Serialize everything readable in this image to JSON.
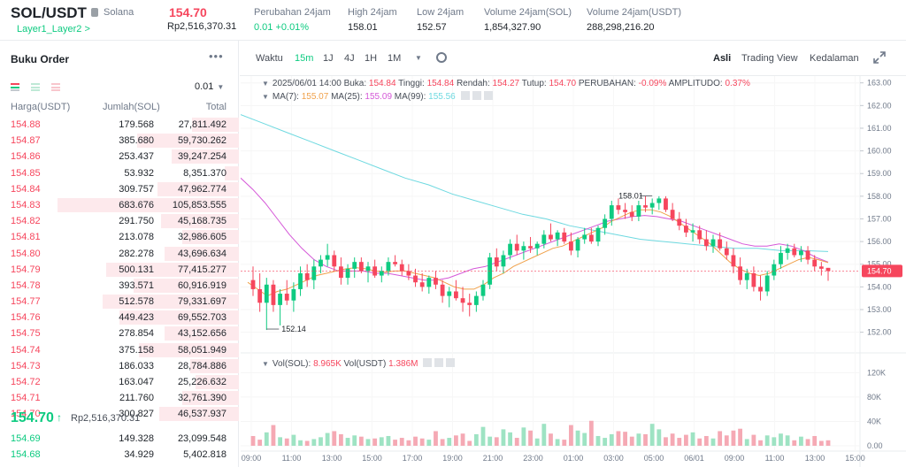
{
  "header": {
    "pair": "SOL/USDT",
    "coin_name": "Solana",
    "tag_link": "Layer1_Layer2 >",
    "price": "154.70",
    "price_idr": "Rp2,516,370.31",
    "stats": [
      {
        "label": "Perubahan 24jam",
        "value": "0.01 +0.01%",
        "color": "#0ecb81"
      },
      {
        "label": "High 24jam",
        "value": "158.01",
        "color": "#1e2329"
      },
      {
        "label": "Low 24jam",
        "value": "152.57",
        "color": "#1e2329"
      },
      {
        "label": "Volume 24jam(SOL)",
        "value": "1,854,327.90",
        "color": "#1e2329"
      },
      {
        "label": "Volume 24jam(USDT)",
        "value": "288,298,216.20",
        "color": "#1e2329"
      }
    ]
  },
  "orderbook": {
    "title": "Buku Order",
    "more": "•••",
    "tick_size": "0.01",
    "columns": {
      "price": "Harga(USDT)",
      "qty": "Jumlah(SOL)",
      "total": "Total"
    },
    "asks": [
      {
        "price": "154.88",
        "qty": "179.568",
        "total": "27,811.492",
        "depth": 0.26
      },
      {
        "price": "154.87",
        "qty": "385.680",
        "total": "59,730.262",
        "depth": 0.56
      },
      {
        "price": "154.86",
        "qty": "253.437",
        "total": "39,247.254",
        "depth": 0.37
      },
      {
        "price": "154.85",
        "qty": "53.932",
        "total": "8,351.370",
        "depth": 0.08
      },
      {
        "price": "154.84",
        "qty": "309.757",
        "total": "47,962.774",
        "depth": 0.45
      },
      {
        "price": "154.83",
        "qty": "683.676",
        "total": "105,853.555",
        "depth": 1.0
      },
      {
        "price": "154.82",
        "qty": "291.750",
        "total": "45,168.735",
        "depth": 0.43
      },
      {
        "price": "154.81",
        "qty": "213.078",
        "total": "32,986.605",
        "depth": 0.31
      },
      {
        "price": "154.80",
        "qty": "282.278",
        "total": "43,696.634",
        "depth": 0.41
      },
      {
        "price": "154.79",
        "qty": "500.131",
        "total": "77,415.277",
        "depth": 0.73
      },
      {
        "price": "154.78",
        "qty": "393.571",
        "total": "60,916.919",
        "depth": 0.58
      },
      {
        "price": "154.77",
        "qty": "512.578",
        "total": "79,331.697",
        "depth": 0.75
      },
      {
        "price": "154.76",
        "qty": "449.423",
        "total": "69,552.703",
        "depth": 0.66
      },
      {
        "price": "154.75",
        "qty": "278.854",
        "total": "43,152.656",
        "depth": 0.41
      },
      {
        "price": "154.74",
        "qty": "375.158",
        "total": "58,051.949",
        "depth": 0.55
      },
      {
        "price": "154.73",
        "qty": "186.033",
        "total": "28,784.886",
        "depth": 0.27
      },
      {
        "price": "154.72",
        "qty": "163.047",
        "total": "25,226.632",
        "depth": 0.24
      },
      {
        "price": "154.71",
        "qty": "211.760",
        "total": "32,761.390",
        "depth": 0.31
      },
      {
        "price": "154.70",
        "qty": "300.827",
        "total": "46,537.937",
        "depth": 0.44
      }
    ],
    "last_price": "154.70",
    "last_arrow": "↑",
    "last_price_idr": "Rp2,516,370.31",
    "bids": [
      {
        "price": "154.69",
        "qty": "149.328",
        "total": "23,099.548",
        "depth": 0.0
      },
      {
        "price": "154.68",
        "qty": "34.929",
        "total": "5,402.818",
        "depth": 0.0
      }
    ]
  },
  "toolbar": {
    "time_label": "Waktu",
    "intervals": [
      "15m",
      "1J",
      "4J",
      "1H",
      "1M"
    ],
    "active_interval": "15m",
    "views": [
      "Asli",
      "Trading View",
      "Kedalaman"
    ],
    "active_view": "Asli"
  },
  "chart_info": {
    "date": "2025/06/01 14:00",
    "buka_label": "Buka:",
    "buka": "154.84",
    "tinggi_label": "Tinggi:",
    "tinggi": "154.84",
    "rendah_label": "Rendah:",
    "rendah": "154.27",
    "tutup_label": "Tutup:",
    "tutup": "154.70",
    "perubahan_label": "PERUBAHAN:",
    "perubahan": "-0.09%",
    "amplitudo_label": "AMPLITUDO:",
    "amplitudo": "0.37%",
    "ma7_label": "MA(7):",
    "ma7": "155.07",
    "ma25_label": "MA(25):",
    "ma25": "155.09",
    "ma99_label": "MA(99):",
    "ma99": "155.56",
    "vol_sol_label": "Vol(SOL):",
    "vol_sol": "8.965K",
    "vol_usdt_label": "Vol(USDT)",
    "vol_usdt": "1.386M"
  },
  "colors": {
    "up": "#0ecb81",
    "down": "#f6465d",
    "ma7": "#f0a14a",
    "ma25": "#d558d8",
    "ma99": "#6ed9e0",
    "vol_up": "#9ee3c3",
    "vol_down": "#f5a9b4"
  },
  "chart_data": {
    "type": "candlestick",
    "price_axis": {
      "ticks": [
        "163.00",
        "162.00",
        "161.00",
        "160.00",
        "159.00",
        "158.00",
        "157.00",
        "156.00",
        "155.00",
        "154.00",
        "153.00",
        "152.00"
      ],
      "range": [
        151.4,
        163.3
      ]
    },
    "current_price_label": "154.70",
    "high_marker": "158.01",
    "low_marker": "152.14",
    "volume_axis": {
      "ticks": [
        "120K",
        "80K",
        "40K",
        "0.00"
      ],
      "range": [
        0,
        135
      ]
    },
    "time_axis": [
      "09:00",
      "11:00",
      "13:00",
      "15:00",
      "17:00",
      "19:00",
      "21:00",
      "23:00",
      "01:00",
      "03:00",
      "05:00",
      "06/01",
      "09:00",
      "11:00",
      "13:00",
      "15:00"
    ],
    "candles": [
      [
        154.3,
        154.9,
        153.6,
        153.9
      ],
      [
        153.9,
        154.6,
        152.9,
        153.3
      ],
      [
        153.3,
        154.4,
        152.1,
        154.1
      ],
      [
        154.1,
        154.3,
        152.9,
        153.2
      ],
      [
        153.2,
        153.9,
        152.3,
        153.7
      ],
      [
        153.7,
        154.3,
        153.2,
        153.4
      ],
      [
        153.4,
        154.2,
        152.9,
        153.9
      ],
      [
        153.9,
        154.9,
        153.6,
        154.6
      ],
      [
        154.6,
        155.0,
        154.0,
        154.3
      ],
      [
        154.3,
        155.2,
        153.9,
        154.9
      ],
      [
        154.9,
        155.4,
        154.6,
        155.2
      ],
      [
        155.2,
        155.9,
        154.9,
        155.4
      ],
      [
        155.4,
        155.6,
        154.7,
        154.9
      ],
      [
        154.9,
        155.3,
        154.1,
        154.4
      ],
      [
        154.4,
        155.0,
        154.1,
        154.8
      ],
      [
        154.8,
        155.3,
        154.4,
        155.1
      ],
      [
        155.1,
        155.3,
        154.6,
        154.7
      ],
      [
        154.7,
        155.1,
        154.2,
        154.9
      ],
      [
        154.9,
        155.2,
        154.4,
        154.5
      ],
      [
        154.5,
        154.9,
        154.2,
        154.7
      ],
      [
        154.7,
        155.3,
        154.5,
        155.1
      ],
      [
        155.1,
        155.4,
        154.9,
        155.0
      ],
      [
        155.0,
        155.2,
        154.5,
        154.7
      ],
      [
        154.7,
        155.0,
        154.3,
        154.5
      ],
      [
        154.5,
        154.8,
        154.0,
        154.2
      ],
      [
        154.2,
        154.6,
        153.8,
        154.0
      ],
      [
        154.0,
        154.5,
        153.7,
        154.4
      ],
      [
        154.4,
        154.7,
        153.9,
        154.1
      ],
      [
        154.1,
        154.3,
        153.3,
        153.6
      ],
      [
        153.6,
        154.0,
        153.1,
        153.8
      ],
      [
        153.8,
        154.3,
        153.4,
        153.5
      ],
      [
        153.5,
        154.0,
        152.9,
        153.3
      ],
      [
        153.3,
        153.7,
        152.7,
        153.2
      ],
      [
        153.2,
        153.8,
        152.9,
        153.6
      ],
      [
        153.6,
        154.3,
        153.4,
        154.1
      ],
      [
        154.1,
        155.5,
        153.9,
        155.3
      ],
      [
        155.3,
        155.7,
        154.7,
        154.9
      ],
      [
        154.9,
        155.6,
        154.6,
        155.4
      ],
      [
        155.4,
        156.1,
        155.2,
        155.9
      ],
      [
        155.9,
        156.3,
        155.4,
        155.6
      ],
      [
        155.6,
        156.0,
        155.2,
        155.8
      ],
      [
        155.8,
        156.2,
        155.5,
        155.7
      ],
      [
        155.7,
        156.0,
        155.4,
        155.9
      ],
      [
        155.9,
        156.5,
        155.7,
        156.3
      ],
      [
        156.3,
        156.8,
        156.0,
        156.1
      ],
      [
        156.1,
        156.5,
        155.8,
        156.4
      ],
      [
        156.4,
        156.6,
        155.9,
        156.0
      ],
      [
        156.0,
        156.4,
        155.4,
        155.6
      ],
      [
        155.6,
        156.2,
        155.3,
        156.1
      ],
      [
        156.1,
        156.6,
        155.9,
        156.3
      ],
      [
        156.3,
        156.6,
        155.9,
        156.0
      ],
      [
        156.0,
        156.7,
        155.8,
        156.6
      ],
      [
        156.6,
        157.2,
        156.3,
        157.0
      ],
      [
        157.0,
        157.8,
        156.7,
        157.6
      ],
      [
        157.6,
        157.9,
        157.2,
        157.4
      ],
      [
        157.4,
        157.7,
        157.0,
        157.3
      ],
      [
        157.3,
        157.6,
        156.9,
        157.1
      ],
      [
        157.1,
        157.8,
        156.9,
        157.6
      ],
      [
        157.6,
        158.0,
        157.3,
        157.5
      ],
      [
        157.5,
        157.9,
        157.2,
        157.7
      ],
      [
        157.7,
        158.0,
        157.4,
        157.9
      ],
      [
        157.9,
        158.0,
        157.3,
        157.4
      ],
      [
        157.4,
        157.7,
        156.9,
        157.0
      ],
      [
        157.0,
        157.3,
        156.5,
        156.7
      ],
      [
        156.7,
        157.0,
        156.2,
        156.4
      ],
      [
        156.4,
        156.8,
        156.0,
        156.5
      ],
      [
        156.5,
        156.7,
        155.9,
        156.1
      ],
      [
        156.1,
        156.5,
        155.6,
        155.8
      ],
      [
        155.8,
        156.3,
        155.5,
        156.1
      ],
      [
        156.1,
        156.4,
        155.6,
        155.7
      ],
      [
        155.7,
        156.0,
        155.2,
        155.4
      ],
      [
        155.4,
        155.7,
        154.6,
        154.9
      ],
      [
        154.9,
        155.3,
        154.1,
        154.3
      ],
      [
        154.3,
        154.8,
        153.9,
        154.6
      ],
      [
        154.6,
        154.9,
        153.8,
        154.0
      ],
      [
        154.0,
        154.5,
        153.4,
        153.8
      ],
      [
        153.8,
        154.7,
        153.6,
        154.5
      ],
      [
        154.5,
        155.2,
        154.3,
        155.0
      ],
      [
        155.0,
        155.8,
        154.8,
        155.5
      ],
      [
        155.5,
        155.9,
        155.2,
        155.7
      ],
      [
        155.7,
        155.9,
        155.3,
        155.4
      ],
      [
        155.4,
        155.8,
        155.1,
        155.6
      ],
      [
        155.6,
        155.8,
        155.0,
        155.2
      ],
      [
        155.2,
        155.4,
        154.7,
        154.9
      ],
      [
        154.9,
        155.1,
        154.5,
        154.8
      ],
      [
        154.84,
        154.84,
        154.27,
        154.7
      ]
    ],
    "ma7": [
      154.2,
      153.9,
      153.6,
      153.8,
      153.9,
      154.1,
      154.3,
      154.5,
      154.6,
      154.7,
      154.8,
      154.85,
      154.8,
      154.7,
      154.65,
      154.7,
      154.7,
      154.6,
      154.5,
      154.4,
      154.2,
      154.0,
      153.9,
      153.9,
      154.1,
      154.4,
      154.6,
      154.9,
      155.1,
      155.3,
      155.5,
      155.7,
      155.8,
      156.0,
      156.2,
      156.4,
      156.6,
      156.9,
      157.1,
      157.3,
      157.4,
      157.4,
      157.3,
      157.1,
      156.8,
      156.5,
      156.2,
      155.9,
      155.5,
      155.1,
      154.8,
      154.6,
      154.5,
      154.6,
      154.8,
      155.0,
      155.2,
      155.3,
      155.2,
      155.07
    ],
    "ma25": [
      158.8,
      158.3,
      157.7,
      157.0,
      156.3,
      155.7,
      155.2,
      154.9,
      154.7,
      154.7,
      154.7,
      154.6,
      154.6,
      154.5,
      154.4,
      154.3,
      154.3,
      154.4,
      154.6,
      154.8,
      154.9,
      155.1,
      155.3,
      155.5,
      155.7,
      155.9,
      156.1,
      156.3,
      156.5,
      156.7,
      156.9,
      157.0,
      157.1,
      157.15,
      157.1,
      157.0,
      156.9,
      156.7,
      156.5,
      156.3,
      156.1,
      155.9,
      155.8,
      155.8,
      155.9,
      155.8,
      155.6,
      155.3,
      155.09
    ],
    "ma99": [
      161.6,
      161.2,
      160.8,
      160.4,
      160.0,
      159.6,
      159.2,
      158.8,
      158.5,
      158.1,
      157.8,
      157.5,
      157.2,
      157.0,
      156.7,
      156.5,
      156.3,
      156.1,
      156.0,
      155.9,
      155.8,
      155.7,
      155.7,
      155.6,
      155.6,
      155.56
    ],
    "volumes": [
      16,
      10,
      22,
      34,
      14,
      12,
      18,
      9,
      8,
      11,
      14,
      21,
      24,
      19,
      13,
      17,
      15,
      11,
      12,
      14,
      16,
      10,
      13,
      9,
      15,
      12,
      10,
      24,
      11,
      13,
      17,
      20,
      8,
      19,
      31,
      15,
      14,
      27,
      22,
      13,
      30,
      25,
      12,
      36,
      20,
      11,
      10,
      34,
      25,
      21,
      41,
      16,
      13,
      19,
      24,
      23,
      15,
      20,
      19,
      36,
      27,
      14,
      20,
      13,
      18,
      22,
      12,
      16,
      12,
      24,
      17,
      25,
      28,
      11,
      18,
      9,
      17,
      14,
      20,
      17,
      9,
      15,
      11,
      16,
      8,
      9
    ]
  }
}
